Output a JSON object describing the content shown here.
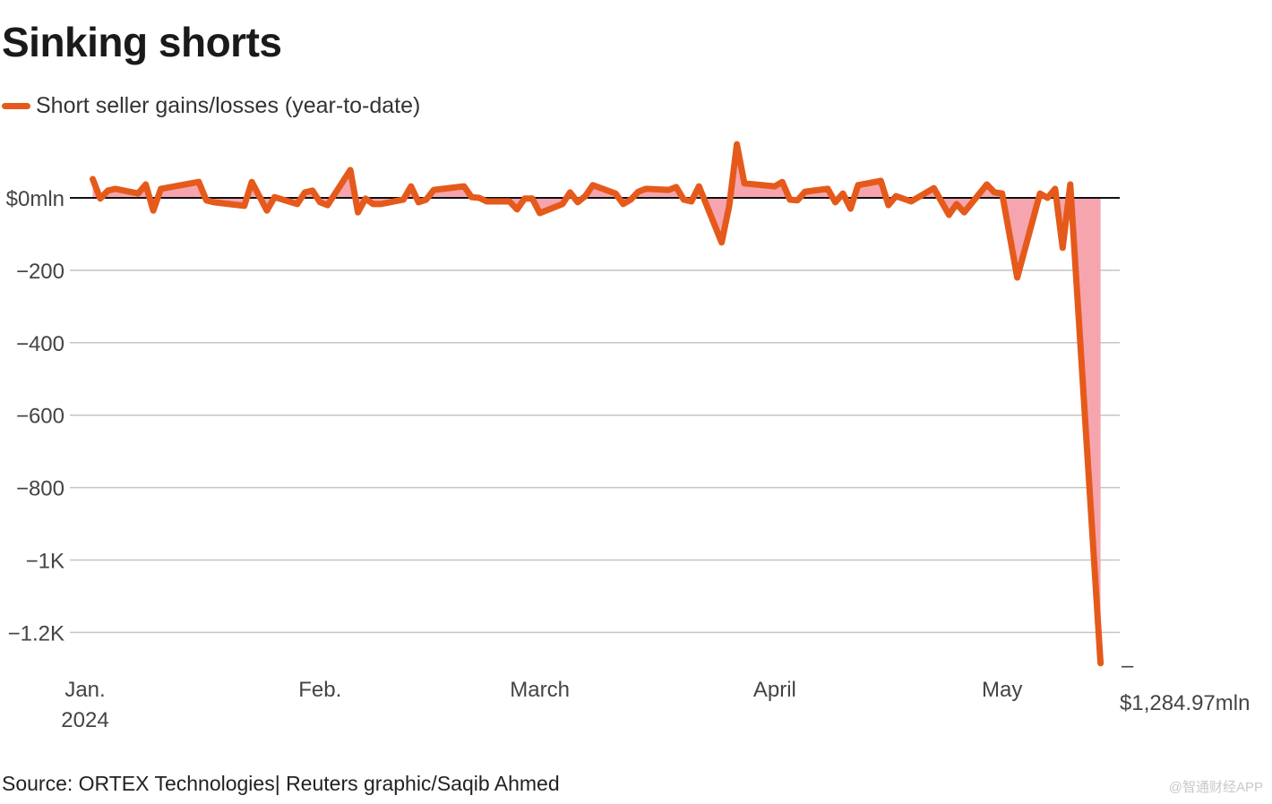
{
  "title": "Sinking shorts",
  "legend": {
    "label": "Short seller gains/losses (year-to-date)",
    "color": "#e55a1b"
  },
  "source": "Source: ORTEX Technologies| Reuters graphic/Saqib Ahmed",
  "watermark": "@智通财经APP",
  "chart_data": {
    "type": "area",
    "title": "Sinking shorts",
    "ylim": [
      -1285,
      150
    ],
    "grid": true,
    "line_color": "#e55a1b",
    "fill_color": "#f6a5ae",
    "y_ticks": [
      {
        "value": 0,
        "label": "$0mln"
      },
      {
        "value": -200,
        "label": "−200"
      },
      {
        "value": -400,
        "label": "−400"
      },
      {
        "value": -600,
        "label": "−600"
      },
      {
        "value": -800,
        "label": "−800"
      },
      {
        "value": -1000,
        "label": "−1K"
      },
      {
        "value": -1200,
        "label": "−1.2K"
      }
    ],
    "x_ticks": [
      {
        "date": "2024-01-01",
        "label": "Jan.",
        "sublabel": "2024"
      },
      {
        "date": "2024-02-01",
        "label": "Feb."
      },
      {
        "date": "2024-03-01",
        "label": "March"
      },
      {
        "date": "2024-04-01",
        "label": "April"
      },
      {
        "date": "2024-05-01",
        "label": "May"
      }
    ],
    "end_label": {
      "line1": "–",
      "line2": "$1,284.97mln"
    },
    "series": [
      {
        "name": "Short seller gains/losses (year-to-date)",
        "points": [
          [
            "2024-01-02",
            52
          ],
          [
            "2024-01-03",
            -2
          ],
          [
            "2024-01-04",
            20
          ],
          [
            "2024-01-05",
            25
          ],
          [
            "2024-01-08",
            12
          ],
          [
            "2024-01-09",
            37
          ],
          [
            "2024-01-10",
            -35
          ],
          [
            "2024-01-11",
            25
          ],
          [
            "2024-01-16",
            44
          ],
          [
            "2024-01-17",
            -7
          ],
          [
            "2024-01-18",
            -12
          ],
          [
            "2024-01-22",
            -22
          ],
          [
            "2024-01-23",
            44
          ],
          [
            "2024-01-25",
            -35
          ],
          [
            "2024-01-26",
            2
          ],
          [
            "2024-01-29",
            -17
          ],
          [
            "2024-01-30",
            15
          ],
          [
            "2024-01-31",
            20
          ],
          [
            "2024-02-01",
            -12
          ],
          [
            "2024-02-02",
            -20
          ],
          [
            "2024-02-05",
            77
          ],
          [
            "2024-02-06",
            -40
          ],
          [
            "2024-02-07",
            -2
          ],
          [
            "2024-02-08",
            -17
          ],
          [
            "2024-02-09",
            -17
          ],
          [
            "2024-02-12",
            -5
          ],
          [
            "2024-02-13",
            32
          ],
          [
            "2024-02-14",
            -12
          ],
          [
            "2024-02-15",
            -5
          ],
          [
            "2024-02-16",
            22
          ],
          [
            "2024-02-20",
            32
          ],
          [
            "2024-02-21",
            2
          ],
          [
            "2024-02-22",
            0
          ],
          [
            "2024-02-23",
            -10
          ],
          [
            "2024-02-26",
            -10
          ],
          [
            "2024-02-27",
            -32
          ],
          [
            "2024-02-28",
            -2
          ],
          [
            "2024-02-29",
            -2
          ],
          [
            "2024-03-01",
            -42
          ],
          [
            "2024-03-04",
            -17
          ],
          [
            "2024-03-05",
            15
          ],
          [
            "2024-03-06",
            -12
          ],
          [
            "2024-03-07",
            5
          ],
          [
            "2024-03-08",
            35
          ],
          [
            "2024-03-11",
            12
          ],
          [
            "2024-03-12",
            -17
          ],
          [
            "2024-03-13",
            -5
          ],
          [
            "2024-03-14",
            17
          ],
          [
            "2024-03-15",
            25
          ],
          [
            "2024-03-18",
            22
          ],
          [
            "2024-03-19",
            30
          ],
          [
            "2024-03-20",
            -5
          ],
          [
            "2024-03-21",
            -10
          ],
          [
            "2024-03-22",
            32
          ],
          [
            "2024-03-25",
            -123
          ],
          [
            "2024-03-26",
            -22
          ],
          [
            "2024-03-27",
            148
          ],
          [
            "2024-03-28",
            40
          ],
          [
            "2024-04-01",
            32
          ],
          [
            "2024-04-02",
            44
          ],
          [
            "2024-04-03",
            -5
          ],
          [
            "2024-04-04",
            -7
          ],
          [
            "2024-04-05",
            17
          ],
          [
            "2024-04-08",
            25
          ],
          [
            "2024-04-09",
            -12
          ],
          [
            "2024-04-10",
            12
          ],
          [
            "2024-04-11",
            -30
          ],
          [
            "2024-04-12",
            35
          ],
          [
            "2024-04-15",
            47
          ],
          [
            "2024-04-16",
            -20
          ],
          [
            "2024-04-17",
            5
          ],
          [
            "2024-04-19",
            -10
          ],
          [
            "2024-04-22",
            27
          ],
          [
            "2024-04-24",
            -47
          ],
          [
            "2024-04-25",
            -17
          ],
          [
            "2024-04-26",
            -40
          ],
          [
            "2024-04-29",
            37
          ],
          [
            "2024-04-30",
            15
          ],
          [
            "2024-05-01",
            12
          ],
          [
            "2024-05-03",
            -220
          ],
          [
            "2024-05-06",
            12
          ],
          [
            "2024-05-07",
            0
          ],
          [
            "2024-05-08",
            25
          ],
          [
            "2024-05-09",
            -138
          ],
          [
            "2024-05-10",
            37
          ],
          [
            "2024-05-14",
            -1284.97
          ]
        ]
      }
    ]
  }
}
